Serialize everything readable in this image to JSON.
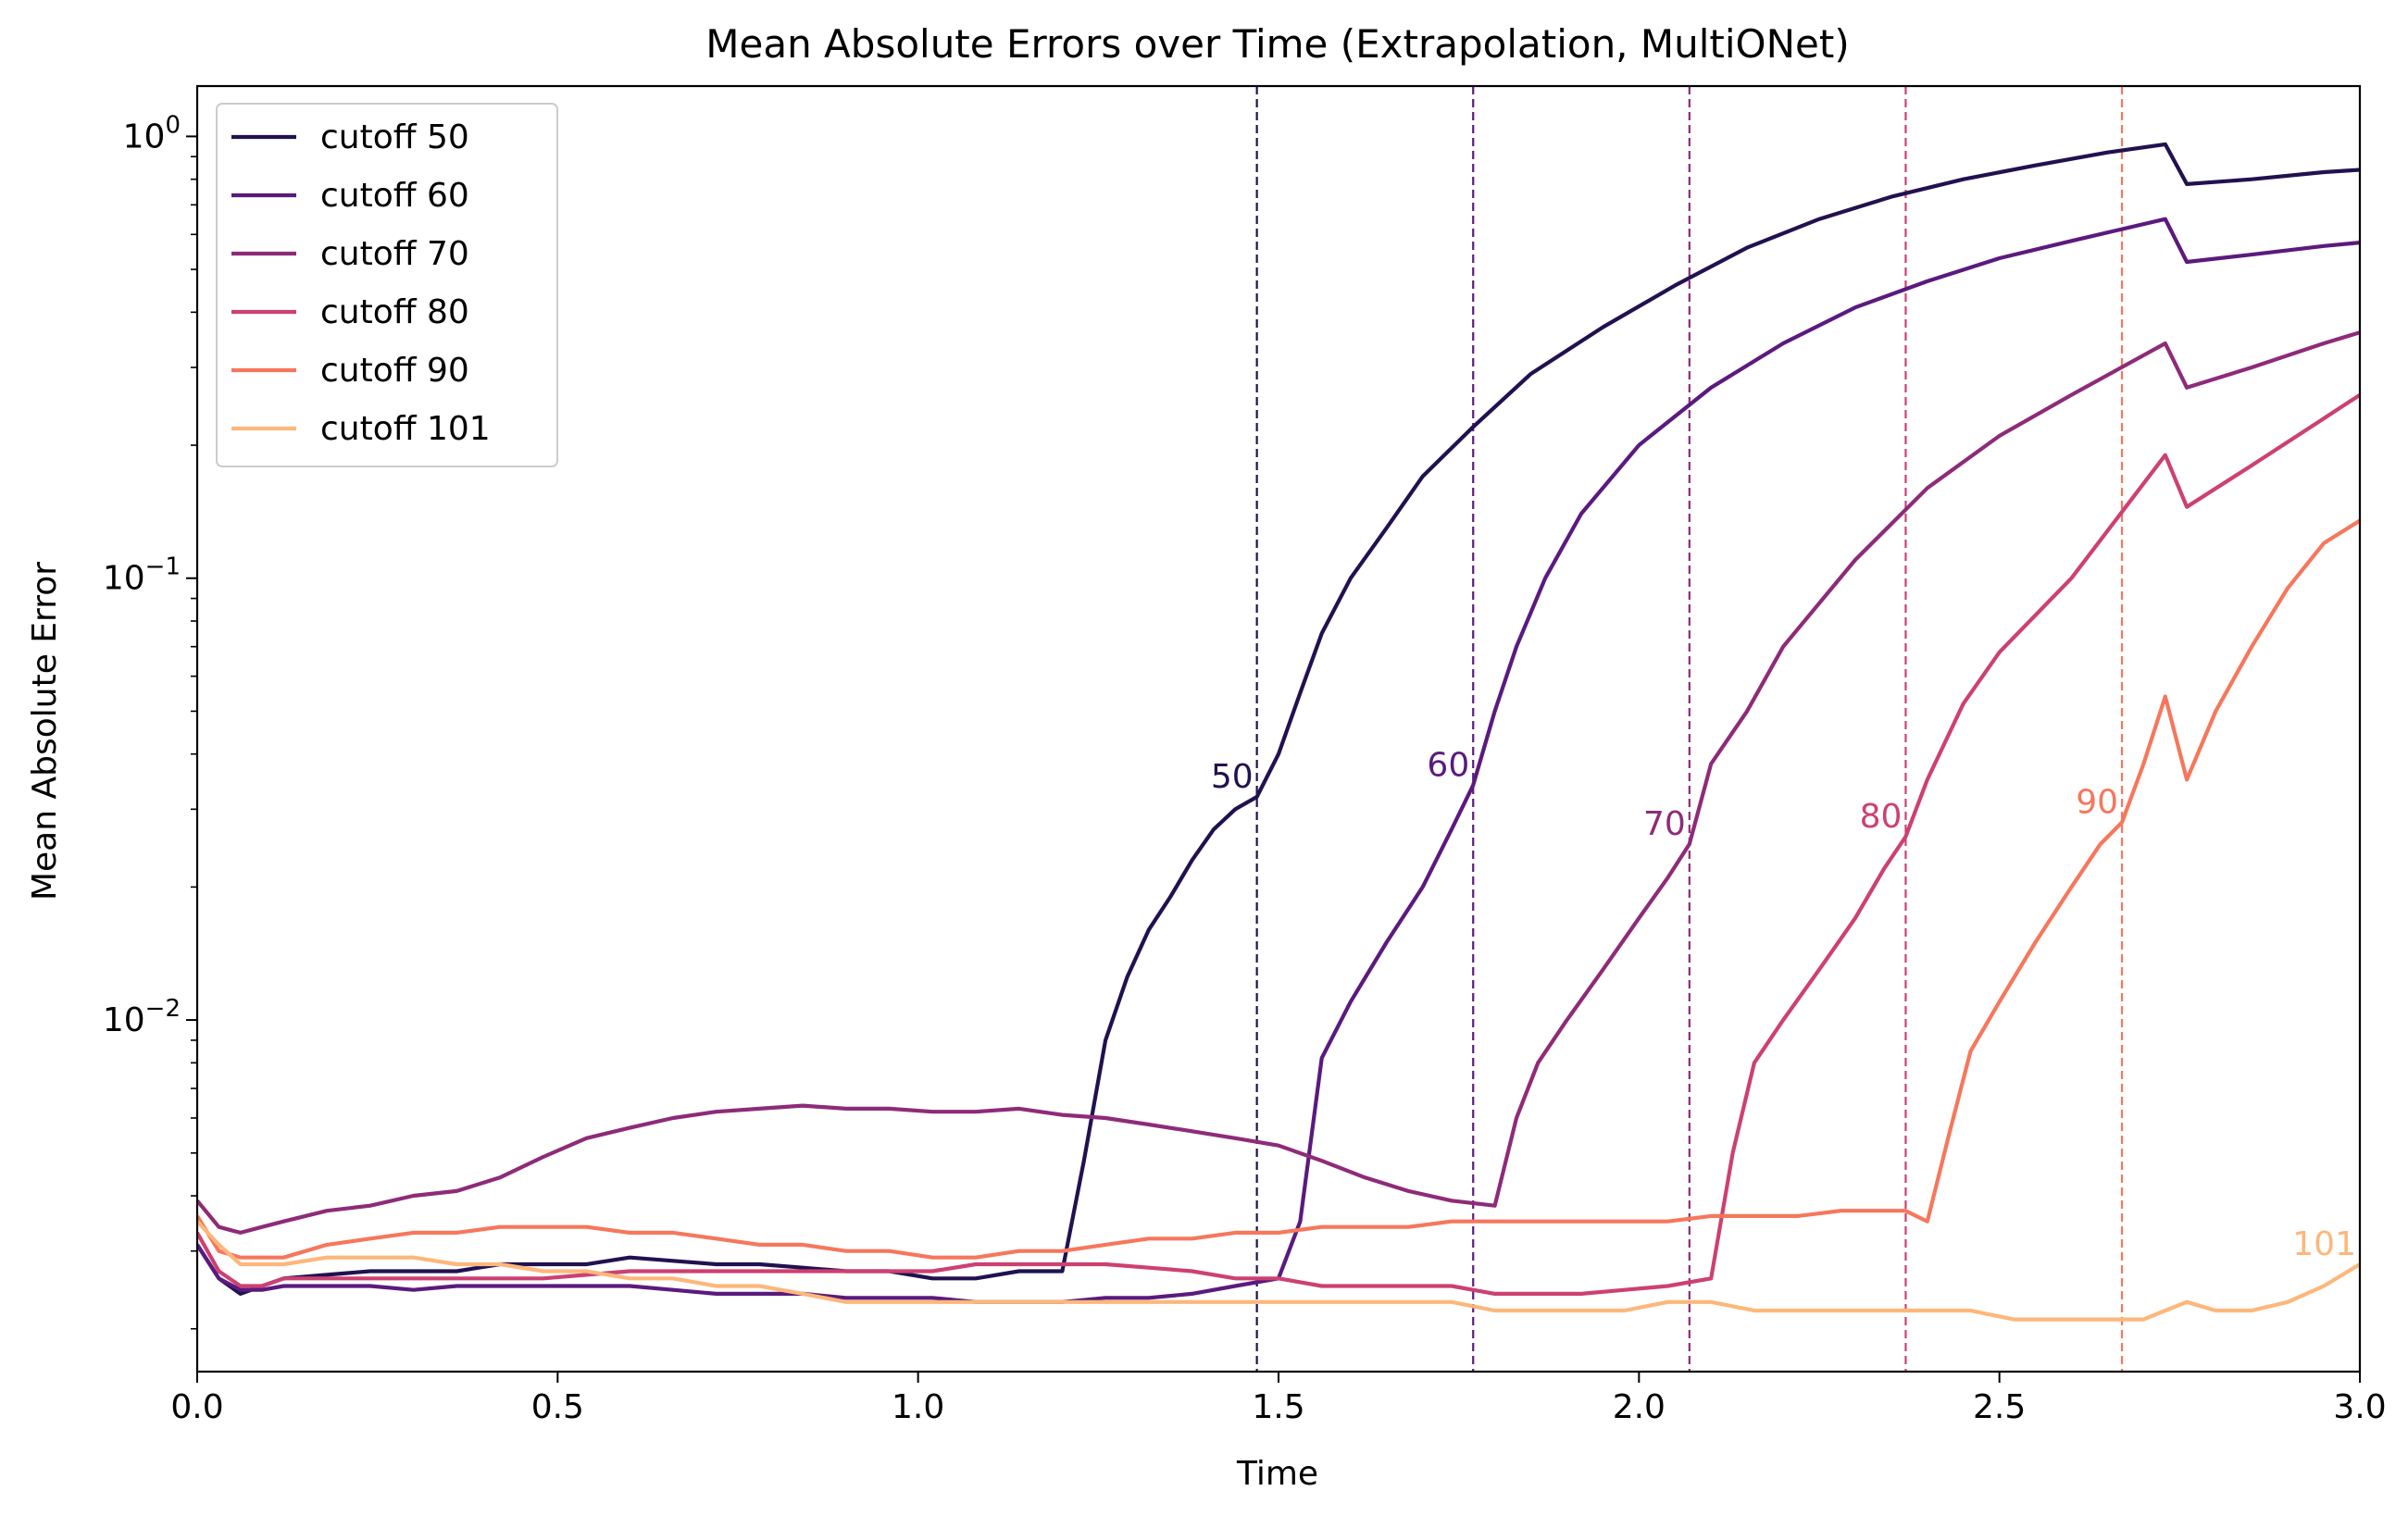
{
  "chart_data": {
    "type": "line",
    "title": "Mean Absolute Errors over Time (Extrapolation, MultiONet)",
    "xlabel": "Time",
    "ylabel": "Mean Absolute Error",
    "xlim": [
      0,
      3
    ],
    "ylim": [
      0.0016,
      1.3
    ],
    "yscale": "log",
    "grid": false,
    "legend_position": "top-left",
    "x_ticks": [
      {
        "value": 0.0,
        "label": "0.0"
      },
      {
        "value": 0.5,
        "label": "0.5"
      },
      {
        "value": 1.0,
        "label": "1.0"
      },
      {
        "value": 1.5,
        "label": "1.5"
      },
      {
        "value": 2.0,
        "label": "2.0"
      },
      {
        "value": 2.5,
        "label": "2.5"
      },
      {
        "value": 3.0,
        "label": "3.0"
      }
    ],
    "y_ticks": [
      {
        "value": 1,
        "base": "10",
        "exp": "0"
      },
      {
        "value": 0.1,
        "base": "10",
        "exp": "−1"
      },
      {
        "value": 0.01,
        "base": "10",
        "exp": "−2"
      }
    ],
    "series": [
      {
        "name": "cutoff 50",
        "color": "#221150",
        "cutoff_time": 1.47,
        "marker_label": "50",
        "x": [
          0,
          0.03,
          0.06,
          0.09,
          0.12,
          0.18,
          0.24,
          0.3,
          0.36,
          0.42,
          0.48,
          0.54,
          0.6,
          0.66,
          0.72,
          0.78,
          0.84,
          0.9,
          0.96,
          1.02,
          1.08,
          1.14,
          1.2,
          1.23,
          1.26,
          1.29,
          1.32,
          1.35,
          1.38,
          1.41,
          1.44,
          1.47,
          1.5,
          1.53,
          1.56,
          1.6,
          1.65,
          1.7,
          1.77,
          1.85,
          1.95,
          2.05,
          2.15,
          2.25,
          2.35,
          2.45,
          2.55,
          2.65,
          2.73,
          2.76,
          2.85,
          2.95,
          3.0
        ],
        "y": [
          0.0031,
          0.0026,
          0.0024,
          0.0025,
          0.0026,
          0.00265,
          0.0027,
          0.0027,
          0.0027,
          0.0028,
          0.0028,
          0.0028,
          0.0029,
          0.00285,
          0.0028,
          0.0028,
          0.00275,
          0.0027,
          0.0027,
          0.0026,
          0.0026,
          0.0027,
          0.0027,
          0.0048,
          0.009,
          0.0125,
          0.016,
          0.019,
          0.023,
          0.027,
          0.03,
          0.032,
          0.04,
          0.055,
          0.075,
          0.1,
          0.13,
          0.17,
          0.22,
          0.29,
          0.37,
          0.46,
          0.56,
          0.65,
          0.73,
          0.8,
          0.86,
          0.92,
          0.96,
          0.78,
          0.8,
          0.83,
          0.84
        ]
      },
      {
        "name": "cutoff 60",
        "color": "#5b1a7e",
        "cutoff_time": 1.77,
        "marker_label": "60",
        "x": [
          0,
          0.03,
          0.06,
          0.09,
          0.12,
          0.18,
          0.24,
          0.3,
          0.36,
          0.42,
          0.48,
          0.54,
          0.6,
          0.66,
          0.72,
          0.78,
          0.84,
          0.9,
          0.96,
          1.02,
          1.08,
          1.14,
          1.2,
          1.26,
          1.32,
          1.38,
          1.44,
          1.5,
          1.53,
          1.56,
          1.6,
          1.65,
          1.7,
          1.74,
          1.77,
          1.8,
          1.83,
          1.87,
          1.92,
          2.0,
          2.1,
          2.2,
          2.3,
          2.4,
          2.5,
          2.6,
          2.73,
          2.76,
          2.85,
          2.95,
          3.0
        ],
        "y": [
          0.0031,
          0.0026,
          0.00245,
          0.00245,
          0.0025,
          0.0025,
          0.0025,
          0.00245,
          0.0025,
          0.0025,
          0.0025,
          0.0025,
          0.0025,
          0.00245,
          0.0024,
          0.0024,
          0.0024,
          0.00235,
          0.00235,
          0.00235,
          0.0023,
          0.0023,
          0.0023,
          0.00235,
          0.00235,
          0.0024,
          0.0025,
          0.0026,
          0.0035,
          0.0082,
          0.011,
          0.015,
          0.02,
          0.027,
          0.034,
          0.05,
          0.07,
          0.1,
          0.14,
          0.2,
          0.27,
          0.34,
          0.41,
          0.47,
          0.53,
          0.58,
          0.65,
          0.52,
          0.54,
          0.565,
          0.575
        ]
      },
      {
        "name": "cutoff 70",
        "color": "#8e2b79",
        "cutoff_time": 2.07,
        "marker_label": "70",
        "x": [
          0,
          0.03,
          0.06,
          0.09,
          0.12,
          0.18,
          0.24,
          0.3,
          0.36,
          0.42,
          0.48,
          0.54,
          0.6,
          0.66,
          0.72,
          0.78,
          0.84,
          0.9,
          0.96,
          1.02,
          1.08,
          1.14,
          1.2,
          1.26,
          1.32,
          1.38,
          1.44,
          1.5,
          1.56,
          1.62,
          1.68,
          1.74,
          1.8,
          1.83,
          1.86,
          1.9,
          1.95,
          2.0,
          2.04,
          2.07,
          2.1,
          2.15,
          2.2,
          2.3,
          2.4,
          2.5,
          2.6,
          2.73,
          2.76,
          2.85,
          2.95,
          3.0
        ],
        "y": [
          0.0039,
          0.0034,
          0.0033,
          0.0034,
          0.0035,
          0.0037,
          0.0038,
          0.004,
          0.0041,
          0.0044,
          0.0049,
          0.0054,
          0.0057,
          0.006,
          0.0062,
          0.0063,
          0.0064,
          0.0063,
          0.0063,
          0.0062,
          0.0062,
          0.0063,
          0.0061,
          0.006,
          0.0058,
          0.0056,
          0.0054,
          0.0052,
          0.0048,
          0.0044,
          0.0041,
          0.0039,
          0.0038,
          0.006,
          0.008,
          0.01,
          0.013,
          0.017,
          0.021,
          0.025,
          0.038,
          0.05,
          0.07,
          0.11,
          0.16,
          0.21,
          0.26,
          0.34,
          0.27,
          0.3,
          0.34,
          0.36
        ]
      },
      {
        "name": "cutoff 80",
        "color": "#cd4072",
        "cutoff_time": 2.37,
        "marker_label": "80",
        "x": [
          0,
          0.03,
          0.06,
          0.09,
          0.12,
          0.18,
          0.24,
          0.3,
          0.36,
          0.42,
          0.48,
          0.54,
          0.6,
          0.66,
          0.72,
          0.78,
          0.84,
          0.9,
          0.96,
          1.02,
          1.08,
          1.14,
          1.2,
          1.26,
          1.32,
          1.38,
          1.44,
          1.5,
          1.56,
          1.62,
          1.68,
          1.74,
          1.8,
          1.86,
          1.92,
          1.98,
          2.04,
          2.1,
          2.13,
          2.16,
          2.2,
          2.25,
          2.3,
          2.34,
          2.37,
          2.4,
          2.45,
          2.5,
          2.6,
          2.73,
          2.76,
          2.85,
          2.95,
          3.0
        ],
        "y": [
          0.0033,
          0.0027,
          0.0025,
          0.0025,
          0.0026,
          0.0026,
          0.0026,
          0.0026,
          0.0026,
          0.0026,
          0.0026,
          0.00265,
          0.0027,
          0.0027,
          0.0027,
          0.0027,
          0.0027,
          0.0027,
          0.0027,
          0.0027,
          0.0028,
          0.0028,
          0.0028,
          0.0028,
          0.00275,
          0.0027,
          0.0026,
          0.0026,
          0.0025,
          0.0025,
          0.0025,
          0.0025,
          0.0024,
          0.0024,
          0.0024,
          0.00245,
          0.0025,
          0.0026,
          0.005,
          0.008,
          0.01,
          0.013,
          0.017,
          0.022,
          0.026,
          0.035,
          0.052,
          0.068,
          0.1,
          0.19,
          0.145,
          0.18,
          0.23,
          0.26
        ]
      },
      {
        "name": "cutoff 90",
        "color": "#f6775c",
        "cutoff_time": 2.67,
        "marker_label": "90",
        "x": [
          0,
          0.03,
          0.06,
          0.09,
          0.12,
          0.18,
          0.24,
          0.3,
          0.36,
          0.42,
          0.48,
          0.54,
          0.6,
          0.66,
          0.72,
          0.78,
          0.84,
          0.9,
          0.96,
          1.02,
          1.08,
          1.14,
          1.2,
          1.26,
          1.32,
          1.38,
          1.44,
          1.5,
          1.56,
          1.62,
          1.68,
          1.74,
          1.8,
          1.86,
          1.92,
          1.98,
          2.04,
          2.1,
          2.16,
          2.22,
          2.28,
          2.34,
          2.37,
          2.4,
          2.43,
          2.46,
          2.5,
          2.55,
          2.6,
          2.64,
          2.67,
          2.7,
          2.73,
          2.76,
          2.8,
          2.85,
          2.9,
          2.95,
          3.0
        ],
        "y": [
          0.0036,
          0.003,
          0.0029,
          0.0029,
          0.0029,
          0.0031,
          0.0032,
          0.0033,
          0.0033,
          0.0034,
          0.0034,
          0.0034,
          0.0033,
          0.0033,
          0.0032,
          0.0031,
          0.0031,
          0.003,
          0.003,
          0.0029,
          0.0029,
          0.003,
          0.003,
          0.0031,
          0.0032,
          0.0032,
          0.0033,
          0.0033,
          0.0034,
          0.0034,
          0.0034,
          0.0035,
          0.0035,
          0.0035,
          0.0035,
          0.0035,
          0.0035,
          0.0036,
          0.0036,
          0.0036,
          0.0037,
          0.0037,
          0.0037,
          0.0035,
          0.0055,
          0.0085,
          0.011,
          0.015,
          0.02,
          0.025,
          0.028,
          0.038,
          0.054,
          0.035,
          0.05,
          0.07,
          0.095,
          0.12,
          0.135
        ]
      },
      {
        "name": "cutoff 101",
        "color": "#fdb77a",
        "cutoff_time": 3.0,
        "marker_label": "101",
        "x": [
          0,
          0.03,
          0.06,
          0.09,
          0.12,
          0.18,
          0.24,
          0.3,
          0.36,
          0.42,
          0.48,
          0.54,
          0.6,
          0.66,
          0.72,
          0.78,
          0.84,
          0.9,
          0.96,
          1.02,
          1.08,
          1.14,
          1.2,
          1.26,
          1.32,
          1.38,
          1.44,
          1.5,
          1.56,
          1.62,
          1.68,
          1.74,
          1.8,
          1.86,
          1.92,
          1.98,
          2.04,
          2.1,
          2.16,
          2.22,
          2.28,
          2.34,
          2.4,
          2.46,
          2.52,
          2.58,
          2.64,
          2.7,
          2.73,
          2.76,
          2.8,
          2.85,
          2.9,
          2.95,
          3.0
        ],
        "y": [
          0.0035,
          0.0031,
          0.0028,
          0.0028,
          0.0028,
          0.0029,
          0.0029,
          0.0029,
          0.0028,
          0.0028,
          0.0027,
          0.0027,
          0.0026,
          0.0026,
          0.0025,
          0.0025,
          0.0024,
          0.0023,
          0.0023,
          0.0023,
          0.0023,
          0.0023,
          0.0023,
          0.0023,
          0.0023,
          0.0023,
          0.0023,
          0.0023,
          0.0023,
          0.0023,
          0.0023,
          0.0023,
          0.0022,
          0.0022,
          0.0022,
          0.0022,
          0.0023,
          0.0023,
          0.0022,
          0.0022,
          0.0022,
          0.0022,
          0.0022,
          0.0022,
          0.0021,
          0.0021,
          0.0021,
          0.0021,
          0.0022,
          0.0023,
          0.0022,
          0.0022,
          0.0023,
          0.0025,
          0.0028
        ]
      }
    ]
  }
}
